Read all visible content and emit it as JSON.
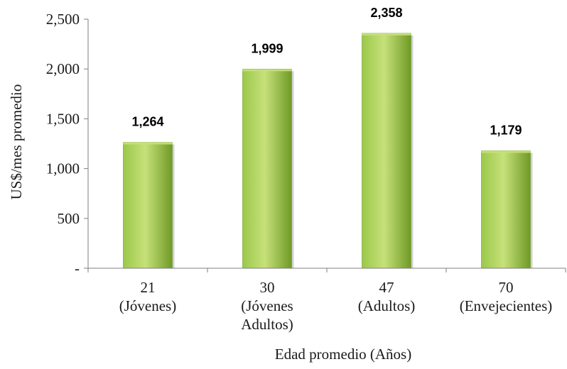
{
  "chart_data": {
    "type": "bar",
    "title": "",
    "xlabel": "Edad promedio (Años)",
    "ylabel": "US$/mes promedio",
    "ylim": [
      0,
      2500
    ],
    "yticks": [
      {
        "value": 0,
        "label": "-"
      },
      {
        "value": 500,
        "label": "500"
      },
      {
        "value": 1000,
        "label": "1,000"
      },
      {
        "value": 1500,
        "label": "1,500"
      },
      {
        "value": 2000,
        "label": "2,000"
      },
      {
        "value": 2500,
        "label": "2,500"
      }
    ],
    "categories": [
      {
        "lines": [
          "21",
          "(Jóvenes)"
        ]
      },
      {
        "lines": [
          "30",
          "(Jóvenes",
          "Adultos)"
        ]
      },
      {
        "lines": [
          "47",
          "(Adultos)"
        ]
      },
      {
        "lines": [
          "70",
          "(Envejecientes)"
        ]
      }
    ],
    "values": [
      1264,
      1999,
      2358,
      1179
    ],
    "data_labels": [
      "1,264",
      "1,999",
      "2,358",
      "1,179"
    ],
    "grid": false,
    "legend": "none",
    "colors": {
      "bar_light": "#c6e17a",
      "bar_mid": "#9bc84a",
      "bar_dark": "#6f9a26",
      "axis": "#7f7f7f"
    }
  }
}
